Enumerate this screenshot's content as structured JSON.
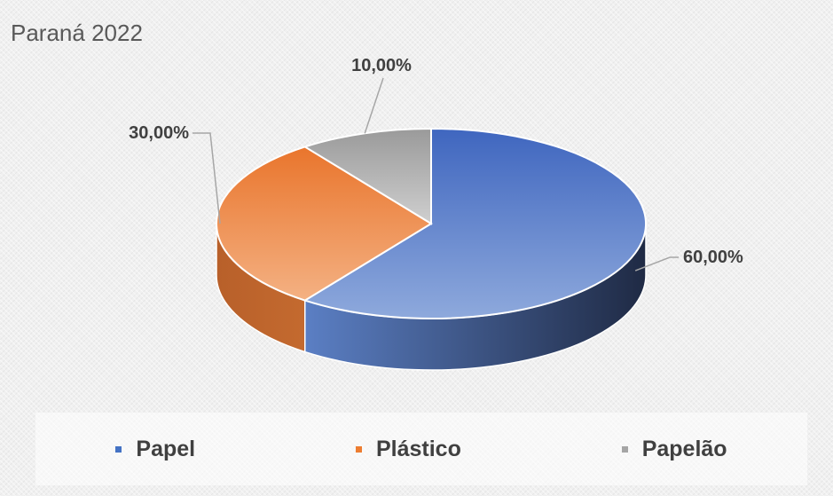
{
  "chart_data": {
    "type": "pie",
    "title": "Paraná 2022",
    "categories": [
      "Papel",
      "Plástico",
      "Papelão"
    ],
    "values": [
      60,
      30,
      10
    ],
    "data_labels": [
      "60,00%",
      "30,00%",
      "10,00%"
    ],
    "colors": [
      "#4472c4",
      "#ed7d31",
      "#a5a5a5"
    ],
    "legend_position": "bottom",
    "style": "3d"
  }
}
